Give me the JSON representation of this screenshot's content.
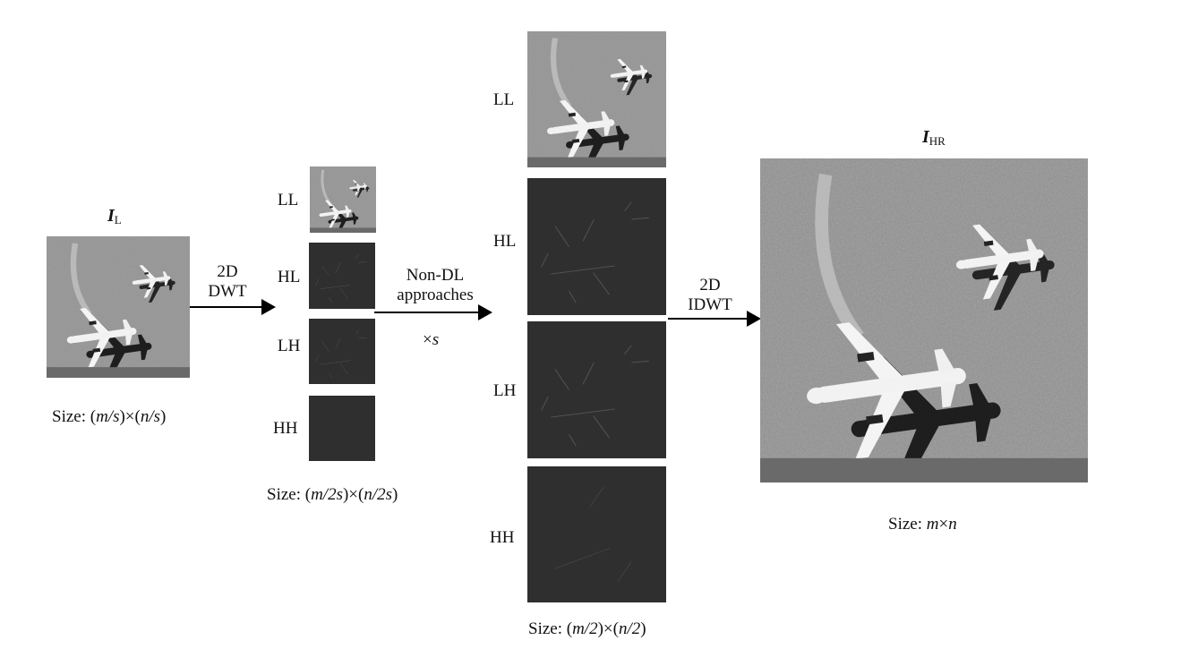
{
  "input": {
    "title_main": "I",
    "title_sub": "L",
    "size_prefix": "Size: ",
    "size_m": "m/s",
    "size_n": "n/s"
  },
  "step1": {
    "line1": "2D",
    "line2": "DWT"
  },
  "subbands_small": {
    "labels": [
      "LL",
      "HL",
      "LH",
      "HH"
    ],
    "size_prefix": "Size: ",
    "size_m": "m/2s",
    "size_n": "n/2s"
  },
  "step2": {
    "line1": "Non-DL",
    "line2": "approaches",
    "scale_prefix": "×",
    "scale": "s"
  },
  "subbands_large": {
    "labels": [
      "LL",
      "HL",
      "LH",
      "HH"
    ],
    "size_prefix": "Size: ",
    "size_m": "m/2",
    "size_n": "n/2"
  },
  "step3": {
    "line1": "2D",
    "line2": "IDWT"
  },
  "output": {
    "title_main": "I",
    "title_sub": "HR",
    "size_prefix": "Size: ",
    "size_m": "m",
    "size_n": "n"
  },
  "colors": {
    "detail_band": "#2f2f2f",
    "arrow": "#000000"
  }
}
